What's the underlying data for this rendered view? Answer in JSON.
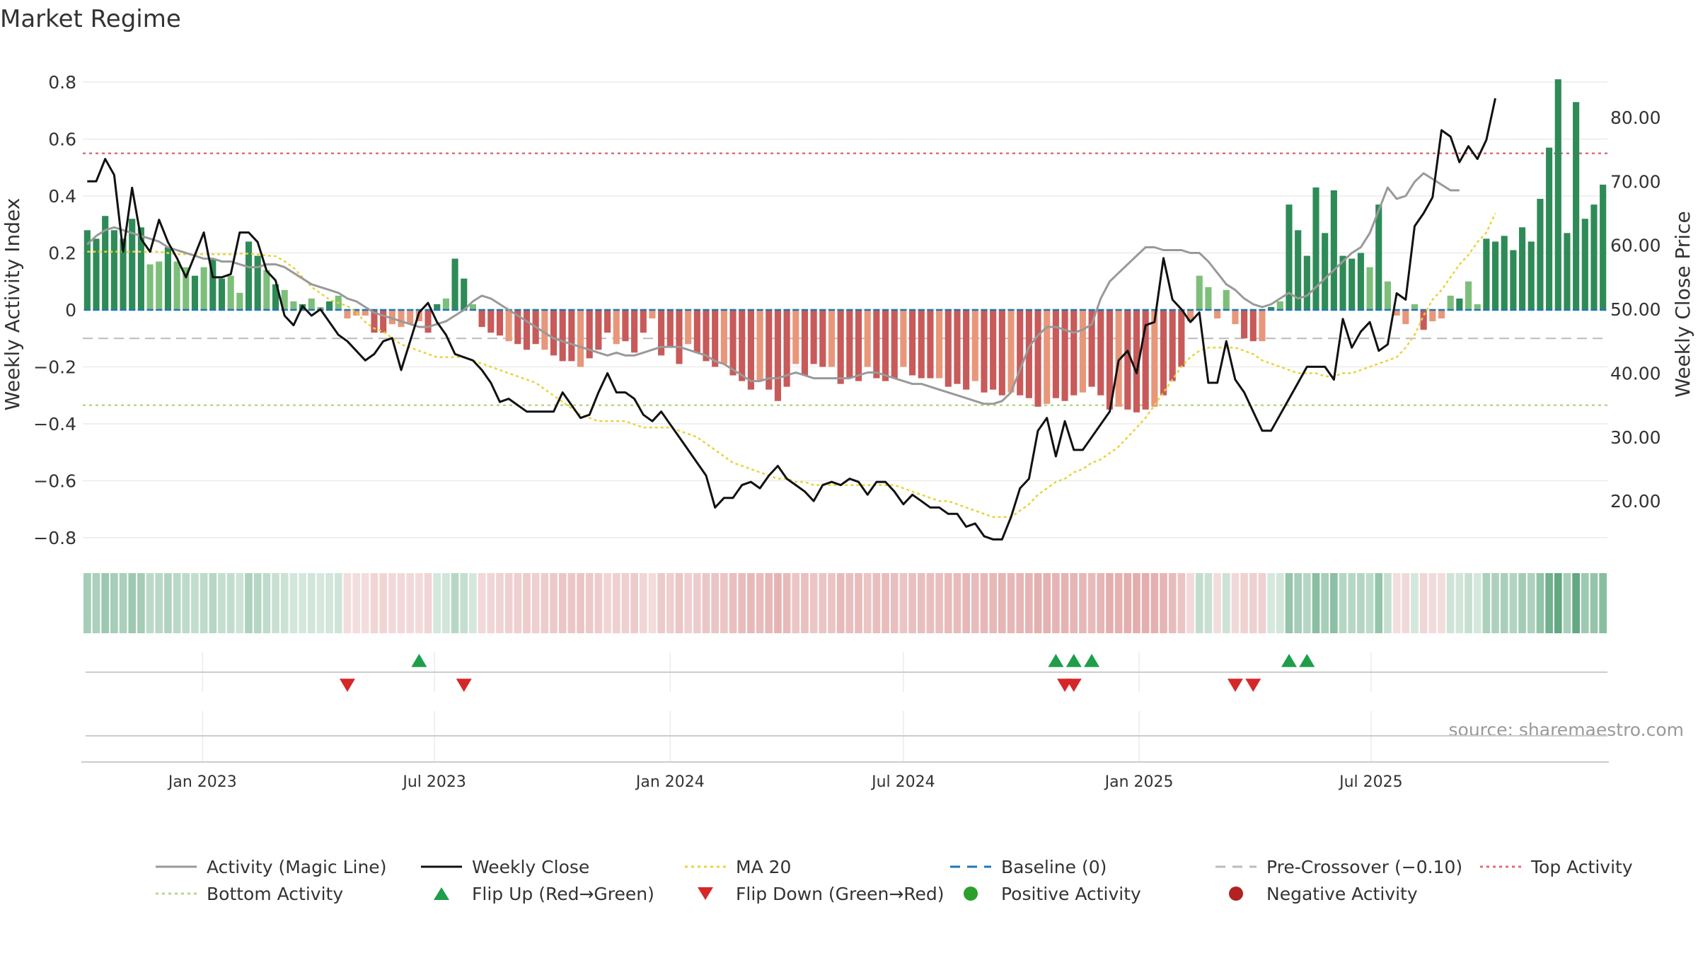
{
  "chart_data": {
    "type": "bar",
    "title": "Market Regime",
    "source": "source: sharemaestro.com",
    "ylabel_left": "Weekly Activity Index",
    "ylabel_right": "Weekly Close Price",
    "left_axis": {
      "range": [
        -0.84,
        0.84
      ],
      "ticks": [
        -0.8,
        -0.6,
        -0.4,
        -0.2,
        0,
        0.2,
        0.4,
        0.6,
        0.8
      ],
      "tick_labels": [
        "−0.8",
        "−0.6",
        "−0.4",
        "−0.2",
        "0",
        "0.2",
        "0.4",
        "0.6",
        "0.8"
      ]
    },
    "right_axis": {
      "range": [
        12.5,
        87.3
      ],
      "ticks": [
        20,
        30,
        40,
        50,
        60,
        70,
        80
      ],
      "tick_labels": [
        "20.00",
        "30.00",
        "40.00",
        "50.00",
        "60.00",
        "70.00",
        "80.00"
      ]
    },
    "x_axis": {
      "start": "2022-10-03",
      "end": "2025-09-29",
      "ticks": [
        "2023-01-01",
        "2023-07-01",
        "2024-01-01",
        "2024-07-01",
        "2025-01-01",
        "2025-07-01"
      ],
      "tick_labels": [
        "Jan 2023",
        "Jul 2023",
        "Jan 2024",
        "Jul 2024",
        "Jan 2025",
        "Jul 2025"
      ]
    },
    "grid": true,
    "legend_placement": "bottom",
    "reference_lines": {
      "baseline": 0,
      "pre_crossover": -0.1,
      "top_activity": 0.55,
      "bottom_activity": -0.335
    },
    "colors": {
      "green_dark": "#2e8b57",
      "green_light": "#7dbf7a",
      "red_dark": "#c85a5a",
      "red_light": "#e8977a",
      "magic_line": "#999999",
      "weekly_close": "#111111",
      "ma20": "#e8d43a",
      "baseline": "#1f77b4",
      "pre_crossover": "#bbbbbb",
      "top_activity": "#e06c7a",
      "bottom_activity": "#b5d88a",
      "flip_up": "#1e9e4a",
      "flip_down": "#d62728",
      "positive_dot": "#2ca02c",
      "negative_dot": "#b22222"
    },
    "series": [
      {
        "name": "Activity (Magic Line)",
        "values": [
          0.23,
          0.26,
          0.28,
          0.29,
          0.28,
          0.27,
          0.26,
          0.25,
          0.24,
          0.22,
          0.21,
          0.2,
          0.19,
          0.18,
          0.18,
          0.17,
          0.17,
          0.16,
          0.15,
          0.15,
          0.16,
          0.16,
          0.15,
          0.13,
          0.11,
          0.09,
          0.08,
          0.07,
          0.06,
          0.04,
          0.03,
          0.01,
          -0.01,
          -0.02,
          -0.03,
          -0.04,
          -0.05,
          -0.06,
          -0.06,
          -0.05,
          -0.04,
          -0.02,
          0.0,
          0.03,
          0.05,
          0.04,
          0.02,
          0.0,
          -0.02,
          -0.04,
          -0.06,
          -0.08,
          -0.1,
          -0.11,
          -0.12,
          -0.13,
          -0.14,
          -0.15,
          -0.16,
          -0.15,
          -0.16,
          -0.16,
          -0.15,
          -0.14,
          -0.13,
          -0.13,
          -0.13,
          -0.14,
          -0.15,
          -0.16,
          -0.18,
          -0.19,
          -0.21,
          -0.23,
          -0.25,
          -0.25,
          -0.24,
          -0.24,
          -0.23,
          -0.22,
          -0.23,
          -0.24,
          -0.24,
          -0.24,
          -0.24,
          -0.24,
          -0.23,
          -0.22,
          -0.22,
          -0.23,
          -0.24,
          -0.25,
          -0.26,
          -0.26,
          -0.27,
          -0.28,
          -0.29,
          -0.3,
          -0.31,
          -0.32,
          -0.33,
          -0.33,
          -0.32,
          -0.29,
          -0.21,
          -0.13,
          -0.09,
          -0.06,
          -0.06,
          -0.07,
          -0.08,
          -0.07,
          -0.05,
          0.04,
          0.1,
          0.13,
          0.16,
          0.19,
          0.22,
          0.22,
          0.21,
          0.21,
          0.21,
          0.2,
          0.2,
          0.17,
          0.13,
          0.09,
          0.07,
          0.04,
          0.02,
          0.01,
          0.02,
          0.04,
          0.06,
          0.04,
          0.05,
          0.08,
          0.11,
          0.14,
          0.17,
          0.2,
          0.22,
          0.27,
          0.35,
          0.43,
          0.39,
          0.4,
          0.45,
          0.48,
          0.46,
          0.44,
          0.42,
          0.42
        ]
      },
      {
        "name": "Weekly Close",
        "axis": "right",
        "values": [
          70,
          70,
          73.5,
          71,
          59,
          69,
          61,
          59,
          64,
          60.5,
          58,
          55,
          58.5,
          62,
          55,
          55,
          55.5,
          62,
          62,
          60.5,
          56,
          54.5,
          49,
          47.5,
          50.5,
          49,
          50,
          48,
          46,
          45,
          43.5,
          42,
          43,
          45,
          45.5,
          40.5,
          45,
          49.5,
          51,
          48,
          46,
          43,
          42.5,
          42,
          40.5,
          38.5,
          35.5,
          36,
          35,
          34,
          34,
          34,
          34,
          37,
          35,
          33,
          33.5,
          37,
          40,
          37,
          37,
          36,
          33.5,
          32.5,
          34,
          32,
          30,
          28,
          26,
          24,
          19,
          20.5,
          20.5,
          22.5,
          23,
          22,
          24,
          25.5,
          23.5,
          22.5,
          21.5,
          20,
          22.5,
          23,
          22.5,
          23.5,
          23,
          21,
          23,
          23,
          21.5,
          19.5,
          21,
          20,
          19,
          19,
          18,
          18,
          16,
          16.5,
          14.5,
          14,
          14,
          17.5,
          22,
          23.5,
          31,
          33,
          27,
          32.5,
          28,
          28,
          30,
          32,
          34,
          42,
          43.5,
          40,
          47.5,
          48,
          58,
          51.5,
          50,
          48,
          49.5,
          38.5,
          38.5,
          45,
          39,
          37,
          34,
          31,
          31,
          33.5,
          36,
          38.5,
          41,
          41,
          41,
          39,
          48.5,
          44,
          46.5,
          48,
          43.5,
          44.5,
          52.5,
          51.5,
          63,
          65,
          67.5,
          78,
          77,
          73,
          75.5,
          73.5,
          76.5,
          83
        ]
      },
      {
        "name": "MA 20",
        "axis": "right",
        "values": [
          59,
          59,
          59,
          59,
          59,
          59,
          59,
          59,
          59,
          58.8,
          58.6,
          58.6,
          58.6,
          58.6,
          58.6,
          58.6,
          58.6,
          58.7,
          58.7,
          58.6,
          58.4,
          58.3,
          57.5,
          56.5,
          55,
          53.5,
          52.5,
          51.5,
          51,
          50.5,
          49.5,
          48,
          47,
          46.5,
          45.5,
          44.5,
          44,
          43.5,
          43,
          42.5,
          42.5,
          42.5,
          42.5,
          42,
          41.5,
          41,
          40.5,
          40,
          39.5,
          39,
          38.5,
          37.5,
          36.5,
          35.5,
          34.5,
          33.5,
          33,
          32.5,
          32.5,
          32.5,
          32.5,
          32,
          31.5,
          31.5,
          31.5,
          31.5,
          31,
          30.5,
          30,
          29,
          28,
          27,
          26,
          25.5,
          25,
          24.5,
          24,
          23.5,
          23.5,
          23,
          23,
          22.5,
          22.5,
          22.5,
          22.5,
          22.5,
          22.5,
          22.5,
          22.5,
          22.5,
          22.5,
          22,
          21.5,
          21,
          20.5,
          20,
          20,
          19.5,
          19,
          18.5,
          18,
          17.5,
          17.5,
          17.5,
          18.5,
          19.5,
          21,
          22,
          23,
          23.5,
          24.5,
          25,
          26,
          26.5,
          27.5,
          28.5,
          30,
          31.5,
          33,
          35,
          37,
          39,
          41,
          42.5,
          43.5,
          44,
          44,
          44,
          44,
          43.5,
          43,
          42,
          41.5,
          41,
          40.5,
          40,
          40,
          40,
          39.5,
          39.5,
          40,
          40,
          40.5,
          41,
          41.5,
          42,
          42.5,
          44,
          46,
          49,
          51.5,
          53,
          55,
          57,
          58.5,
          60.5,
          62,
          65
        ]
      },
      {
        "name": "Weekly Activity Index (bars)",
        "values": [
          0.28,
          0.25,
          0.33,
          0.28,
          0.25,
          0.32,
          0.29,
          0.16,
          0.17,
          0.22,
          0.17,
          0.15,
          0.12,
          0.15,
          0.18,
          0.11,
          0.12,
          0.06,
          0.24,
          0.19,
          0.14,
          0.09,
          0.07,
          0.03,
          0.02,
          0.04,
          0.01,
          0.03,
          0.05,
          -0.03,
          -0.02,
          -0.02,
          -0.08,
          -0.08,
          -0.05,
          -0.06,
          -0.05,
          -0.04,
          -0.08,
          0.02,
          0.04,
          0.18,
          0.11,
          0.02,
          -0.06,
          -0.08,
          -0.09,
          -0.11,
          -0.12,
          -0.14,
          -0.12,
          -0.14,
          -0.16,
          -0.18,
          -0.18,
          -0.2,
          -0.17,
          -0.14,
          -0.08,
          -0.12,
          -0.11,
          -0.15,
          -0.08,
          -0.03,
          -0.16,
          -0.13,
          -0.19,
          -0.12,
          -0.15,
          -0.18,
          -0.2,
          -0.19,
          -0.23,
          -0.25,
          -0.28,
          -0.25,
          -0.28,
          -0.32,
          -0.27,
          -0.19,
          -0.23,
          -0.19,
          -0.2,
          -0.2,
          -0.26,
          -0.24,
          -0.25,
          -0.2,
          -0.24,
          -0.25,
          -0.24,
          -0.2,
          -0.23,
          -0.24,
          -0.24,
          -0.24,
          -0.27,
          -0.26,
          -0.28,
          -0.25,
          -0.29,
          -0.28,
          -0.3,
          -0.29,
          -0.3,
          -0.31,
          -0.34,
          -0.33,
          -0.31,
          -0.32,
          -0.3,
          -0.29,
          -0.27,
          -0.3,
          -0.35,
          -0.34,
          -0.35,
          -0.36,
          -0.35,
          -0.34,
          -0.3,
          -0.25,
          -0.2,
          -0.04,
          0.12,
          0.08,
          -0.03,
          0.07,
          -0.05,
          -0.1,
          -0.11,
          -0.11,
          0.01,
          0.03,
          0.37,
          0.28,
          0.19,
          0.43,
          0.27,
          0.42,
          0.19,
          0.18,
          0.2,
          0.15,
          0.37,
          0.1,
          -0.02,
          -0.05,
          0.02,
          -0.07,
          -0.04,
          -0.03,
          0.05,
          0.04,
          0.1,
          0.02,
          0.25,
          0.24,
          0.26,
          0.21,
          0.29,
          0.24,
          0.39,
          0.57,
          0.81,
          0.27,
          0.73,
          0.32,
          0.37,
          0.44
        ]
      }
    ],
    "flip_up_dates": [
      "2023-06-19",
      "2024-10-28",
      "2024-11-11",
      "2024-11-25",
      "2025-04-28",
      "2025-05-12"
    ],
    "flip_down_dates": [
      "2023-04-24",
      "2023-07-24",
      "2024-11-04",
      "2024-11-11",
      "2025-03-17",
      "2025-03-31"
    ]
  },
  "legend": [
    {
      "label": "Activity (Magic Line)",
      "kind": "line",
      "color": "#999999",
      "dash": "none"
    },
    {
      "label": "Weekly Close",
      "kind": "line",
      "color": "#111111",
      "dash": "none"
    },
    {
      "label": "MA 20",
      "kind": "line",
      "color": "#e8d43a",
      "dash": "dotted"
    },
    {
      "label": "Baseline (0)",
      "kind": "line",
      "color": "#1f77b4",
      "dash": "dashed"
    },
    {
      "label": "Pre-Crossover (−0.10)",
      "kind": "line",
      "color": "#bbbbbb",
      "dash": "dashed"
    },
    {
      "label": "Top Activity",
      "kind": "line",
      "color": "#e06c7a",
      "dash": "dotted"
    },
    {
      "label": "Bottom Activity",
      "kind": "line",
      "color": "#b5d88a",
      "dash": "dotted"
    },
    {
      "label": "Flip Up (Red→Green)",
      "kind": "triangle-up",
      "color": "#1e9e4a"
    },
    {
      "label": "Flip Down (Green→Red)",
      "kind": "triangle-down",
      "color": "#d62728"
    },
    {
      "label": "Positive Activity",
      "kind": "dot",
      "color": "#2ca02c"
    },
    {
      "label": "Negative Activity",
      "kind": "dot",
      "color": "#b22222"
    }
  ]
}
